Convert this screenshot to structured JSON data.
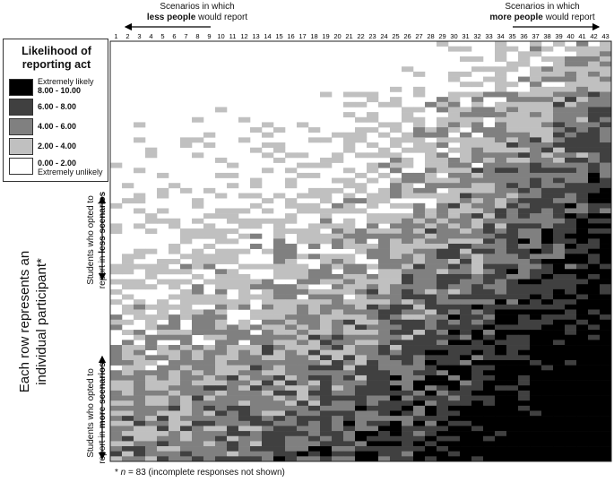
{
  "chart_data": {
    "type": "heatmap",
    "columns": [
      "1",
      "2",
      "3",
      "4",
      "5",
      "6",
      "7",
      "8",
      "9",
      "10",
      "11",
      "12",
      "13",
      "14",
      "15",
      "16",
      "17",
      "18",
      "19",
      "20",
      "21",
      "22",
      "23",
      "24",
      "25",
      "26",
      "27",
      "28",
      "29",
      "30",
      "31",
      "32",
      "33",
      "34",
      "35",
      "36",
      "37",
      "38",
      "39",
      "40",
      "41",
      "42",
      "43"
    ],
    "row_count": 83,
    "legend_title_line1": "Likelihood of",
    "legend_title_line2": "reporting act",
    "bins": [
      {
        "label": "8.00 - 10.00",
        "note": "Extremely likely",
        "color": "#000000"
      },
      {
        "label": "6.00 - 8.00",
        "note": "",
        "color": "#404040"
      },
      {
        "label": "4.00 - 6.00",
        "note": "",
        "color": "#808080"
      },
      {
        "label": "2.00 - 4.00",
        "note": "",
        "color": "#c0c0c0"
      },
      {
        "label": "0.00 - 2.00",
        "note": "Extremely unlikely",
        "color": "#ffffff"
      }
    ]
  },
  "captions": {
    "left_top_line1": "Scenarios in which",
    "left_top_bold": "less people",
    "left_top_rest": " would report",
    "right_top_line1": "Scenarios in which",
    "right_top_bold": "more people",
    "right_top_rest": " would report",
    "y_main_line1": "Each row represents an",
    "y_main_line2": "individual participant*",
    "group_upper_line1": "Students who opted to",
    "group_upper_line2_pre": "report in ",
    "group_upper_line2_bold": "less scenarios",
    "group_lower_line1": "Students who opted to",
    "group_lower_line2_pre": "report in ",
    "group_lower_line2_bold": "more scenarios",
    "footnote_pre": "* ",
    "footnote_n": "n",
    "footnote_rest": " = 83 (incomplete responses not shown)"
  }
}
